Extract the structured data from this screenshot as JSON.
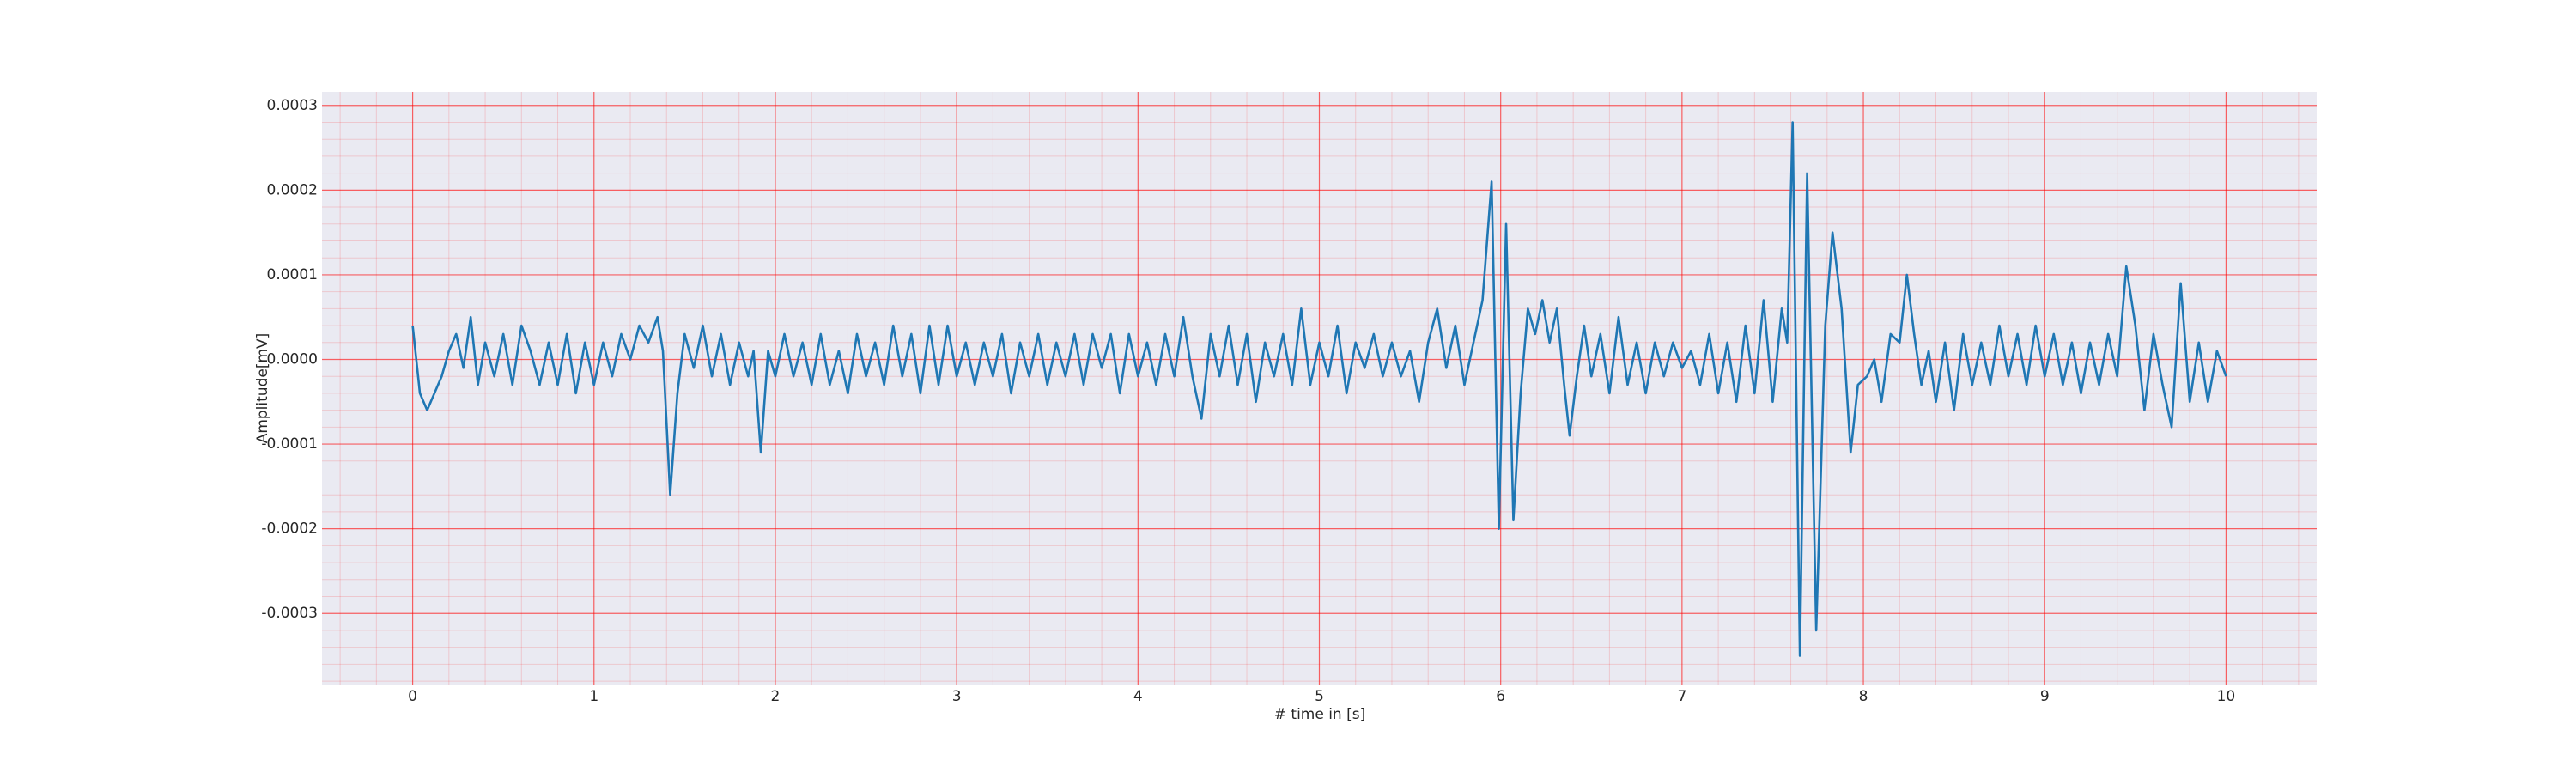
{
  "chart_data": {
    "type": "line",
    "xlabel": "# time in [s]",
    "ylabel": "Amplitude[mV]",
    "color": "#1f77b4",
    "background": "#eaeaf2",
    "grid": true,
    "grid_color": "#ff0000",
    "minor_grid": true,
    "xlim": [
      -0.5,
      10.5
    ],
    "ylim": [
      -0.000385,
      0.000316
    ],
    "xticks": [
      0,
      1,
      2,
      3,
      4,
      5,
      6,
      7,
      8,
      9,
      10
    ],
    "yticks": [
      -0.0003,
      -0.0002,
      -0.0001,
      {
        "value": 0,
        "label": "0.0000"
      },
      0.0001,
      0.0002,
      0.0003
    ],
    "x": [
      0.0,
      0.04,
      0.08,
      0.12,
      0.16,
      0.2,
      0.24,
      0.28,
      0.32,
      0.36,
      0.4,
      0.45,
      0.5,
      0.55,
      0.6,
      0.65,
      0.7,
      0.75,
      0.8,
      0.85,
      0.9,
      0.95,
      1.0,
      1.05,
      1.1,
      1.15,
      1.2,
      1.25,
      1.3,
      1.35,
      1.38,
      1.42,
      1.46,
      1.5,
      1.55,
      1.6,
      1.65,
      1.7,
      1.75,
      1.8,
      1.85,
      1.88,
      1.92,
      1.96,
      2.0,
      2.05,
      2.1,
      2.15,
      2.2,
      2.25,
      2.3,
      2.35,
      2.4,
      2.45,
      2.5,
      2.55,
      2.6,
      2.65,
      2.7,
      2.75,
      2.8,
      2.85,
      2.9,
      2.95,
      3.0,
      3.05,
      3.1,
      3.15,
      3.2,
      3.25,
      3.3,
      3.35,
      3.4,
      3.45,
      3.5,
      3.55,
      3.6,
      3.65,
      3.7,
      3.75,
      3.8,
      3.85,
      3.9,
      3.95,
      4.0,
      4.05,
      4.1,
      4.15,
      4.2,
      4.25,
      4.3,
      4.35,
      4.4,
      4.45,
      4.5,
      4.55,
      4.6,
      4.65,
      4.7,
      4.75,
      4.8,
      4.85,
      4.9,
      4.95,
      5.0,
      5.05,
      5.1,
      5.15,
      5.2,
      5.25,
      5.3,
      5.35,
      5.4,
      5.45,
      5.5,
      5.55,
      5.6,
      5.65,
      5.7,
      5.75,
      5.8,
      5.85,
      5.9,
      5.95,
      5.99,
      6.03,
      6.07,
      6.11,
      6.15,
      6.19,
      6.23,
      6.27,
      6.31,
      6.35,
      6.38,
      6.42,
      6.46,
      6.5,
      6.55,
      6.6,
      6.65,
      6.7,
      6.75,
      6.8,
      6.85,
      6.9,
      6.95,
      7.0,
      7.05,
      7.1,
      7.15,
      7.2,
      7.25,
      7.3,
      7.35,
      7.4,
      7.45,
      7.5,
      7.55,
      7.58,
      7.61,
      7.65,
      7.69,
      7.74,
      7.79,
      7.83,
      7.88,
      7.93,
      7.97,
      8.02,
      8.06,
      8.1,
      8.15,
      8.2,
      8.24,
      8.28,
      8.32,
      8.36,
      8.4,
      8.45,
      8.5,
      8.55,
      8.6,
      8.65,
      8.7,
      8.75,
      8.8,
      8.85,
      8.9,
      8.95,
      9.0,
      9.05,
      9.1,
      9.15,
      9.2,
      9.25,
      9.3,
      9.35,
      9.4,
      9.45,
      9.5,
      9.55,
      9.6,
      9.65,
      9.7,
      9.75,
      9.8,
      9.85,
      9.9,
      9.95,
      10.0
    ],
    "values": [
      4e-05,
      -4e-05,
      -6e-05,
      -4e-05,
      -2e-05,
      1e-05,
      3e-05,
      -1e-05,
      5e-05,
      -3e-05,
      2e-05,
      -2e-05,
      3e-05,
      -3e-05,
      4e-05,
      1e-05,
      -3e-05,
      2e-05,
      -3e-05,
      3e-05,
      -4e-05,
      2e-05,
      -3e-05,
      2e-05,
      -2e-05,
      3e-05,
      0,
      4e-05,
      2e-05,
      5e-05,
      1e-05,
      -0.00016,
      -4e-05,
      3e-05,
      -1e-05,
      4e-05,
      -2e-05,
      3e-05,
      -3e-05,
      2e-05,
      -2e-05,
      1e-05,
      -0.00011,
      1e-05,
      -2e-05,
      3e-05,
      -2e-05,
      2e-05,
      -3e-05,
      3e-05,
      -3e-05,
      1e-05,
      -4e-05,
      3e-05,
      -2e-05,
      2e-05,
      -3e-05,
      4e-05,
      -2e-05,
      3e-05,
      -4e-05,
      4e-05,
      -3e-05,
      4e-05,
      -2e-05,
      2e-05,
      -3e-05,
      2e-05,
      -2e-05,
      3e-05,
      -4e-05,
      2e-05,
      -2e-05,
      3e-05,
      -3e-05,
      2e-05,
      -2e-05,
      3e-05,
      -3e-05,
      3e-05,
      -1e-05,
      3e-05,
      -4e-05,
      3e-05,
      -2e-05,
      2e-05,
      -3e-05,
      3e-05,
      -2e-05,
      5e-05,
      -2e-05,
      -7e-05,
      3e-05,
      -2e-05,
      4e-05,
      -3e-05,
      3e-05,
      -5e-05,
      2e-05,
      -2e-05,
      3e-05,
      -3e-05,
      6e-05,
      -3e-05,
      2e-05,
      -2e-05,
      4e-05,
      -4e-05,
      2e-05,
      -1e-05,
      3e-05,
      -2e-05,
      2e-05,
      -2e-05,
      1e-05,
      -5e-05,
      2e-05,
      6e-05,
      -1e-05,
      4e-05,
      -3e-05,
      2e-05,
      7e-05,
      0.00021,
      -0.0002,
      0.00016,
      -0.00019,
      -4e-05,
      6e-05,
      3e-05,
      7e-05,
      2e-05,
      6e-05,
      -3e-05,
      -9e-05,
      -2e-05,
      4e-05,
      -2e-05,
      3e-05,
      -4e-05,
      5e-05,
      -3e-05,
      2e-05,
      -4e-05,
      2e-05,
      -2e-05,
      2e-05,
      -1e-05,
      1e-05,
      -3e-05,
      3e-05,
      -4e-05,
      2e-05,
      -5e-05,
      4e-05,
      -4e-05,
      7e-05,
      -5e-05,
      6e-05,
      2e-05,
      0.00028,
      -0.00035,
      0.00022,
      -0.00032,
      4e-05,
      0.00015,
      6e-05,
      -0.00011,
      -3e-05,
      -2e-05,
      0,
      -5e-05,
      3e-05,
      2e-05,
      0.0001,
      3e-05,
      -3e-05,
      1e-05,
      -5e-05,
      2e-05,
      -6e-05,
      3e-05,
      -3e-05,
      2e-05,
      -3e-05,
      4e-05,
      -2e-05,
      3e-05,
      -3e-05,
      4e-05,
      -2e-05,
      3e-05,
      -3e-05,
      2e-05,
      -4e-05,
      2e-05,
      -3e-05,
      3e-05,
      -2e-05,
      0.00011,
      4e-05,
      -6e-05,
      3e-05,
      -3e-05,
      -8e-05,
      9e-05,
      -5e-05,
      2e-05,
      -5e-05,
      1e-05,
      -2e-05
    ]
  }
}
